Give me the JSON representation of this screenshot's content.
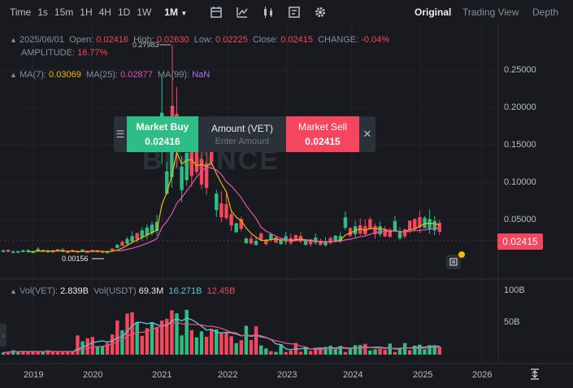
{
  "toolbar": {
    "label_time": "Time",
    "timeframes": [
      "1s",
      "15m",
      "1H",
      "4H",
      "1D",
      "1W"
    ],
    "active_timeframe": "1M",
    "views": [
      "Original",
      "Trading View",
      "Depth"
    ]
  },
  "ohlc": {
    "date": "2025/06/01",
    "open_label": "Open:",
    "open": "0.02416",
    "high_label": "High:",
    "high": "0.02630",
    "low_label": "Low:",
    "low": "0.02225",
    "close_label": "Close:",
    "close": "0.02415",
    "change_label": "CHANGE:",
    "change": "-0.04%",
    "amplitude_label": "AMPLITUDE:",
    "amplitude": "16.77%"
  },
  "ma": {
    "ma7_label": "MA(7):",
    "ma7": "0.03069",
    "ma25_label": "MA(25):",
    "ma25": "0.02877",
    "ma99_label": "MA(99):",
    "ma99": "NaN"
  },
  "volume": {
    "vol_label": "Vol(VET):",
    "vol": "2.839B",
    "vol_usdt_label": "Vol(USDT)",
    "vol_usdt": "69.3M",
    "ma1": "16.271B",
    "ma2": "12.45B"
  },
  "price_axis": [
    "0.25000",
    "0.20000",
    "0.15000",
    "0.10000",
    "0.05000"
  ],
  "volume_axis": [
    "100B",
    "50B"
  ],
  "time_axis": [
    "2019",
    "2020",
    "2021",
    "2022",
    "2023",
    "2024",
    "2025",
    "2026"
  ],
  "annotations": {
    "high_marker": "0.27983",
    "low_marker": "0.00156"
  },
  "current_price": "0.02415",
  "watermark": "BINANCE",
  "trade_panel": {
    "buy_label": "Market Buy",
    "buy_price": "0.02416",
    "amount_label": "Amount (VET)",
    "amount_placeholder": "Enter Amount",
    "sell_label": "Market Sell",
    "sell_price": "0.02415"
  },
  "colors": {
    "up": "#2ebd85",
    "down": "#f6465d",
    "ma7": "#f0b90b",
    "ma25": "#e94fb8",
    "ma99": "#b56cff",
    "vol_ma1": "#5ec4d6",
    "vol_ma2": "#e94f7b"
  }
}
